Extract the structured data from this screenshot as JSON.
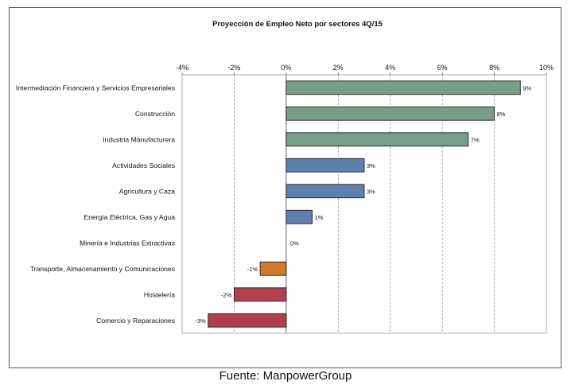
{
  "chart_data": {
    "type": "bar",
    "orientation": "horizontal",
    "title": "Proyección de Empleo Neto por sectores  4Q/15",
    "xlabel": "",
    "ylabel": "",
    "xlim": [
      -4,
      10
    ],
    "tick_values": [
      -4,
      -2,
      0,
      2,
      4,
      6,
      8,
      10
    ],
    "tick_labels": [
      "-4%",
      "-2%",
      "0%",
      "2%",
      "4%",
      "6%",
      "8%",
      "10%"
    ],
    "grid": true,
    "categories": [
      "Intermediación Financiera y Servicios Empresariales",
      "Construcción",
      "Industria Manufacturera",
      "Actividades Sociales",
      "Agricultura y Caza",
      "Energía Eléctrica, Gas y Agua",
      "Minería e Industrias Extractivas",
      "Transporte, Almacenamiento y Comunicaciones",
      "Hostelería",
      "Comercio y Reparaciones"
    ],
    "values": [
      9,
      8,
      7,
      3,
      3,
      1,
      0,
      -1,
      -2,
      -3
    ],
    "value_labels": [
      "9%",
      "8%",
      "7%",
      "3%",
      "3%",
      "1%",
      "0%",
      "-1%",
      "-2%",
      "-3%"
    ],
    "bar_colors": [
      "#769e88",
      "#769e88",
      "#769e88",
      "#5f80ad",
      "#5f80ad",
      "#5f80ad",
      "#5f80ad",
      "#d07a2c",
      "#b04050",
      "#b04050"
    ]
  },
  "caption": "Fuente: ManpowerGroup"
}
